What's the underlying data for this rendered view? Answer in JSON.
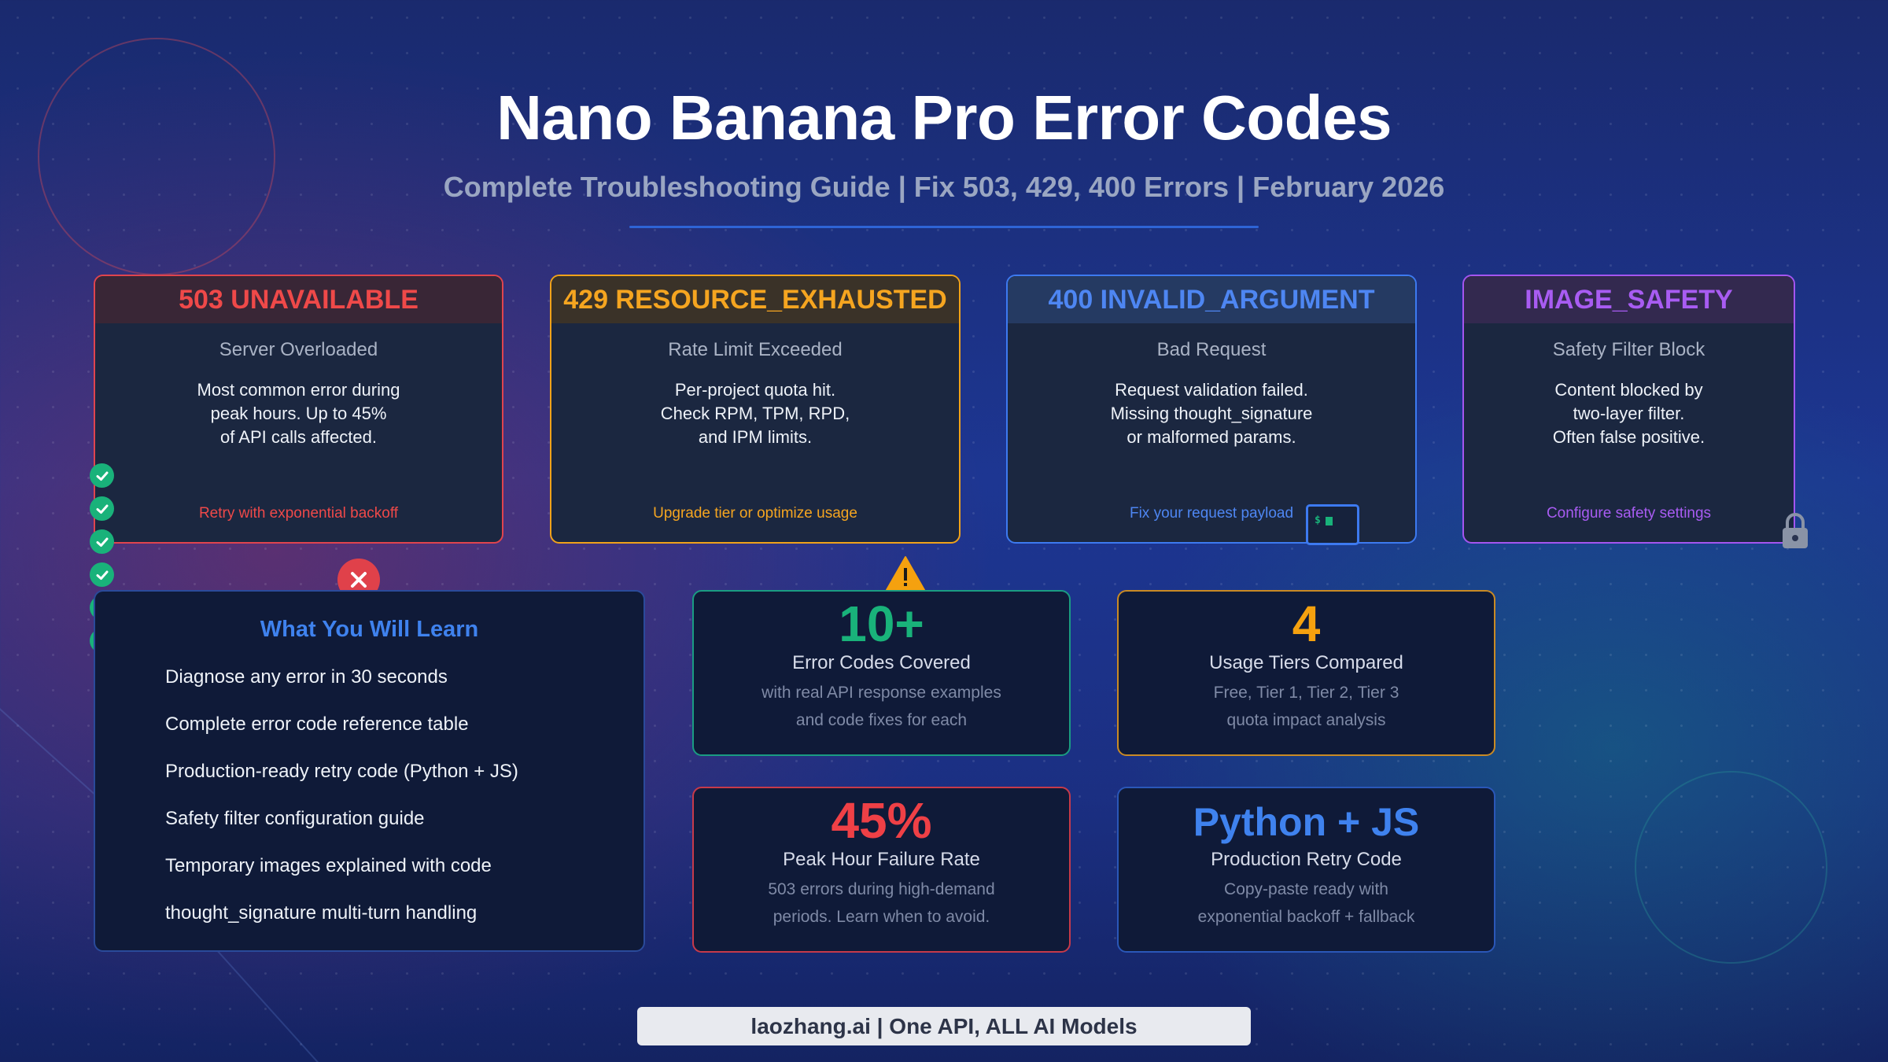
{
  "header": {
    "title": "Nano Banana Pro Error Codes",
    "subtitle": "Complete Troubleshooting Guide | Fix 503, 429, 400 Errors | February 2026"
  },
  "error_cards": [
    {
      "code": "503 UNAVAILABLE",
      "name": "Server Overloaded",
      "description": "Most common error during\npeak hours. Up to 45%\nof API calls affected.",
      "fix": "Retry with exponential backoff",
      "color": "#ef4949"
    },
    {
      "code": "429 RESOURCE_EXHAUSTED",
      "name": "Rate Limit Exceeded",
      "description": "Per-project quota hit.\nCheck RPM, TPM, RPD,\nand IPM limits.",
      "fix": "Upgrade tier or optimize usage",
      "color": "#f5a520"
    },
    {
      "code": "400 INVALID_ARGUMENT",
      "name": "Bad Request",
      "description": "Request validation failed.\nMissing thought_signature\nor malformed params.",
      "fix": "Fix your request payload",
      "color": "#4e86f2"
    },
    {
      "code": "IMAGE_SAFETY",
      "name": "Safety Filter Block",
      "description": "Content blocked by\ntwo-layer filter.\nOften false positive.",
      "fix": "Configure safety settings",
      "color": "#a85cf2"
    }
  ],
  "learn": {
    "title": "What You Will Learn",
    "items": [
      "Diagnose any error in 30 seconds",
      "Complete error code reference table",
      "Production-ready retry code (Python + JS)",
      "Safety filter configuration guide",
      "Temporary images explained with code",
      "thought_signature multi-turn handling"
    ]
  },
  "stats": [
    {
      "value": "10+",
      "label": "Error Codes Covered",
      "description": "with real API response examples\nand code fixes for each",
      "color": "#19b27a"
    },
    {
      "value": "4",
      "label": "Usage Tiers Compared",
      "description": "Free, Tier 1, Tier 2, Tier 3\nquota impact analysis",
      "color": "#f5a10f"
    },
    {
      "value": "45%",
      "label": "Peak Hour Failure Rate",
      "description": "503 errors during high-demand\nperiods. Learn when to avoid.",
      "color": "#ef4046"
    },
    {
      "value": "Python + JS",
      "label": "Production Retry Code",
      "description": "Copy-paste ready with\nexponential backoff + fallback",
      "color": "#3f82ee"
    }
  ],
  "footer": {
    "text": "laozhang.ai | One API, ALL AI Models"
  },
  "icons": {
    "checks": [
      "check-circle-icon",
      "check-circle-icon",
      "check-circle-icon",
      "check-circle-icon",
      "check-circle-icon",
      "check-circle-icon"
    ],
    "error": "x-circle-icon",
    "warning": "warning-triangle-icon",
    "terminal": "terminal-icon",
    "lock": "lock-icon"
  }
}
